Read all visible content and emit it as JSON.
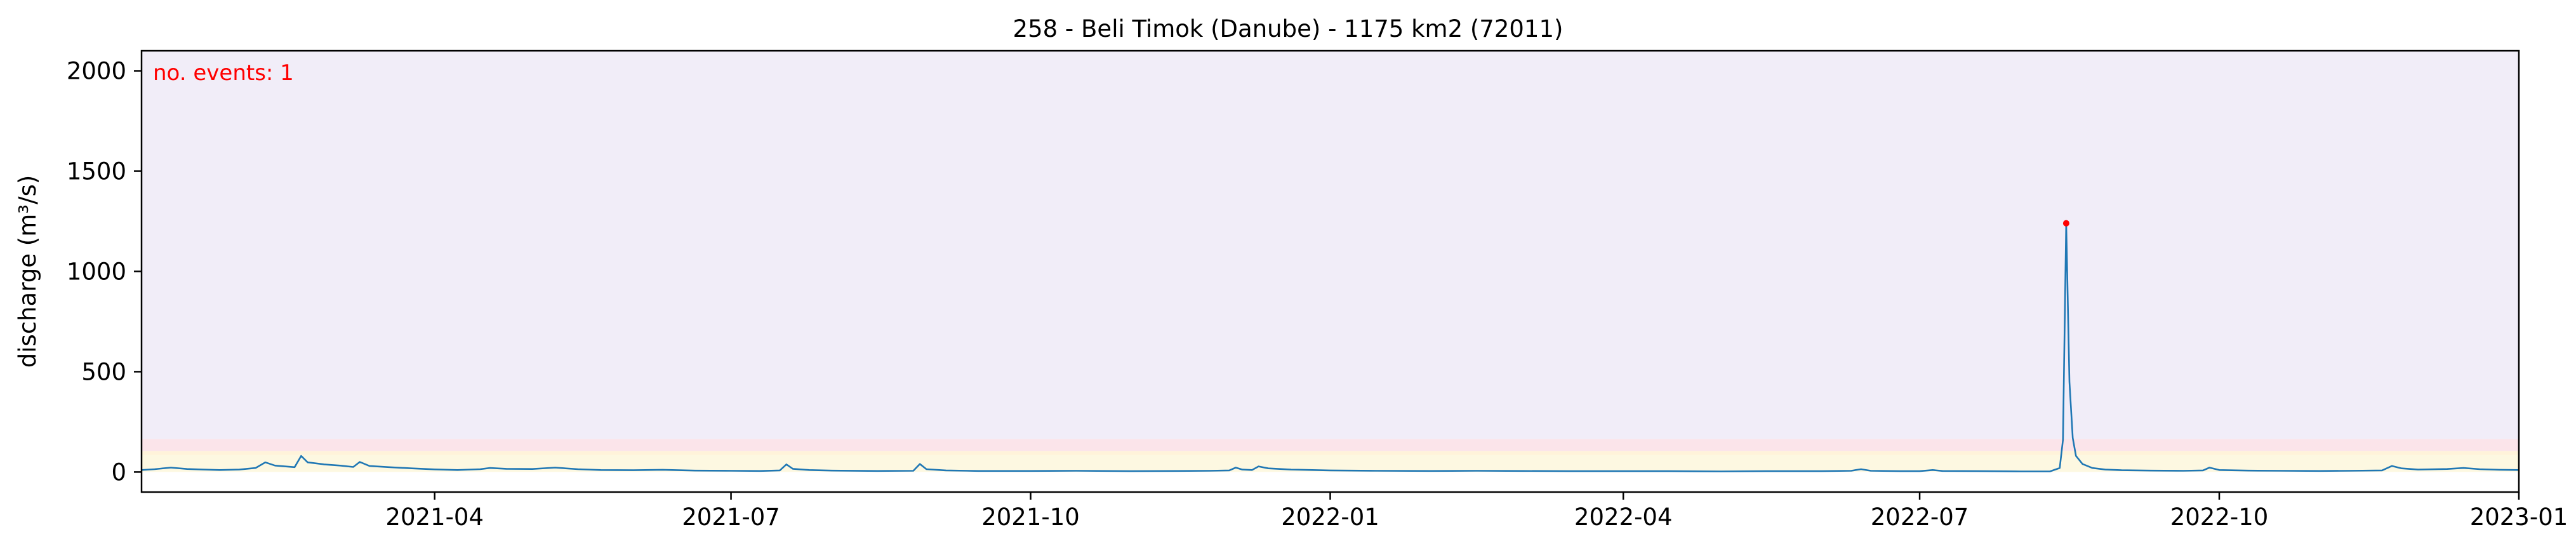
{
  "chart_data": {
    "type": "line",
    "title": "258 - Beli Timok (Danube) - 1175 km2 (72011)",
    "xlabel": "",
    "ylabel": "discharge (m³/s)",
    "annotation": "no. events: 1",
    "xlim": [
      "2021-01-01",
      "2023-01-01"
    ],
    "ylim": [
      -100,
      2100
    ],
    "grid": false,
    "x_ticks": [
      "2021-04-01",
      "2021-07-01",
      "2021-10-01",
      "2022-01-01",
      "2022-04-01",
      "2022-07-01",
      "2022-10-01",
      "2023-01-01"
    ],
    "x_tick_labels": [
      "2021-04",
      "2021-07",
      "2021-10",
      "2022-01",
      "2022-04",
      "2022-07",
      "2022-10",
      "2023-01"
    ],
    "y_ticks": [
      0,
      500,
      1000,
      1500,
      2000
    ],
    "y_tick_labels": [
      "0",
      "500",
      "1000",
      "1500",
      "2000"
    ],
    "bands": [
      {
        "from": 0,
        "to": 85,
        "color": "#fdf8e1"
      },
      {
        "from": 85,
        "to": 105,
        "color": "#fff3da"
      },
      {
        "from": 105,
        "to": 165,
        "color": "#fbe4ea"
      },
      {
        "from": 165,
        "to": 2100,
        "color": "#f1edf8"
      }
    ],
    "series": [
      {
        "color": "#1f77b4",
        "points": [
          [
            "2021-01-01",
            10
          ],
          [
            "2021-01-05",
            14
          ],
          [
            "2021-01-10",
            22
          ],
          [
            "2021-01-15",
            15
          ],
          [
            "2021-01-20",
            12
          ],
          [
            "2021-01-25",
            10
          ],
          [
            "2021-01-31",
            12
          ],
          [
            "2021-02-05",
            20
          ],
          [
            "2021-02-08",
            48
          ],
          [
            "2021-02-11",
            32
          ],
          [
            "2021-02-14",
            28
          ],
          [
            "2021-02-17",
            24
          ],
          [
            "2021-02-19",
            80
          ],
          [
            "2021-02-21",
            48
          ],
          [
            "2021-02-26",
            38
          ],
          [
            "2021-03-03",
            32
          ],
          [
            "2021-03-07",
            25
          ],
          [
            "2021-03-09",
            50
          ],
          [
            "2021-03-12",
            30
          ],
          [
            "2021-03-18",
            24
          ],
          [
            "2021-03-25",
            18
          ],
          [
            "2021-04-01",
            13
          ],
          [
            "2021-04-08",
            10
          ],
          [
            "2021-04-15",
            14
          ],
          [
            "2021-04-18",
            20
          ],
          [
            "2021-04-23",
            16
          ],
          [
            "2021-05-01",
            15
          ],
          [
            "2021-05-08",
            22
          ],
          [
            "2021-05-15",
            14
          ],
          [
            "2021-05-22",
            10
          ],
          [
            "2021-06-01",
            9
          ],
          [
            "2021-06-10",
            11
          ],
          [
            "2021-06-20",
            7
          ],
          [
            "2021-07-01",
            6
          ],
          [
            "2021-07-10",
            5
          ],
          [
            "2021-07-16",
            8
          ],
          [
            "2021-07-18",
            38
          ],
          [
            "2021-07-20",
            16
          ],
          [
            "2021-07-25",
            10
          ],
          [
            "2021-08-01",
            7
          ],
          [
            "2021-08-15",
            5
          ],
          [
            "2021-08-26",
            6
          ],
          [
            "2021-08-28",
            40
          ],
          [
            "2021-08-30",
            14
          ],
          [
            "2021-09-05",
            8
          ],
          [
            "2021-09-15",
            5
          ],
          [
            "2021-10-01",
            5
          ],
          [
            "2021-10-15",
            6
          ],
          [
            "2021-11-01",
            4
          ],
          [
            "2021-11-15",
            5
          ],
          [
            "2021-11-25",
            6
          ],
          [
            "2021-12-01",
            8
          ],
          [
            "2021-12-03",
            22
          ],
          [
            "2021-12-05",
            12
          ],
          [
            "2021-12-08",
            10
          ],
          [
            "2021-12-10",
            28
          ],
          [
            "2021-12-13",
            18
          ],
          [
            "2021-12-20",
            12
          ],
          [
            "2022-01-01",
            8
          ],
          [
            "2022-01-15",
            6
          ],
          [
            "2022-02-01",
            5
          ],
          [
            "2022-02-15",
            6
          ],
          [
            "2022-03-01",
            5
          ],
          [
            "2022-03-15",
            4
          ],
          [
            "2022-04-01",
            4
          ],
          [
            "2022-04-15",
            4
          ],
          [
            "2022-05-01",
            3
          ],
          [
            "2022-05-15",
            4
          ],
          [
            "2022-06-01",
            4
          ],
          [
            "2022-06-10",
            6
          ],
          [
            "2022-06-13",
            14
          ],
          [
            "2022-06-16",
            6
          ],
          [
            "2022-06-25",
            4
          ],
          [
            "2022-07-01",
            4
          ],
          [
            "2022-07-05",
            10
          ],
          [
            "2022-07-08",
            5
          ],
          [
            "2022-07-20",
            4
          ],
          [
            "2022-08-01",
            3
          ],
          [
            "2022-08-10",
            3
          ],
          [
            "2022-08-13",
            20
          ],
          [
            "2022-08-14",
            160
          ],
          [
            "2022-08-15",
            1240
          ],
          [
            "2022-08-16",
            450
          ],
          [
            "2022-08-17",
            170
          ],
          [
            "2022-08-18",
            80
          ],
          [
            "2022-08-20",
            40
          ],
          [
            "2022-08-23",
            20
          ],
          [
            "2022-08-27",
            12
          ],
          [
            "2022-09-01",
            9
          ],
          [
            "2022-09-10",
            7
          ],
          [
            "2022-09-20",
            6
          ],
          [
            "2022-09-26",
            8
          ],
          [
            "2022-09-28",
            22
          ],
          [
            "2022-10-01",
            10
          ],
          [
            "2022-10-10",
            7
          ],
          [
            "2022-10-20",
            6
          ],
          [
            "2022-11-01",
            5
          ],
          [
            "2022-11-10",
            6
          ],
          [
            "2022-11-20",
            8
          ],
          [
            "2022-11-23",
            30
          ],
          [
            "2022-11-26",
            18
          ],
          [
            "2022-12-01",
            12
          ],
          [
            "2022-12-10",
            15
          ],
          [
            "2022-12-15",
            20
          ],
          [
            "2022-12-20",
            14
          ],
          [
            "2022-12-26",
            11
          ],
          [
            "2023-01-01",
            10
          ]
        ]
      }
    ],
    "events": [
      {
        "x": "2022-08-15",
        "y": 1240,
        "color": "#ff0000"
      }
    ]
  }
}
